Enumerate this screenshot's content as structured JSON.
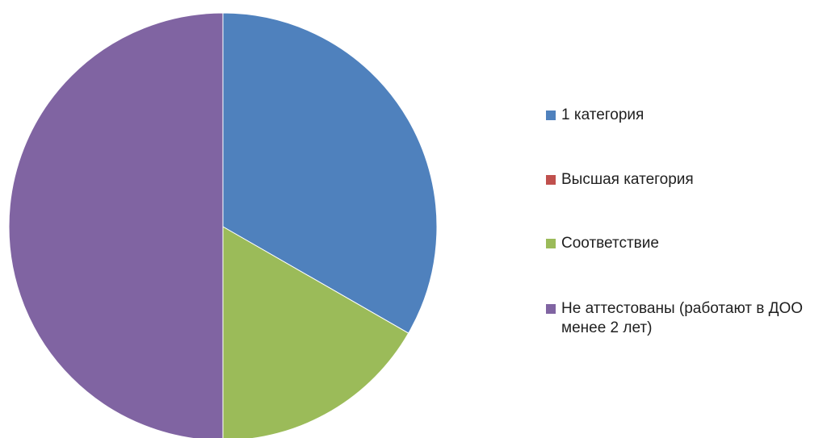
{
  "chart_data": {
    "type": "pie",
    "title": "",
    "categories": [
      "1 категория",
      "Высшая категория",
      "Соответствие",
      "Не аттестованы (работают в ДОО менее 2 лет)"
    ],
    "values": [
      33.3,
      0,
      16.7,
      50
    ],
    "colors": [
      "#4F81BD",
      "#C0504D",
      "#9BBB59",
      "#8064A2"
    ],
    "legend_position": "right",
    "start_angle_deg": 0,
    "direction": "clockwise"
  }
}
